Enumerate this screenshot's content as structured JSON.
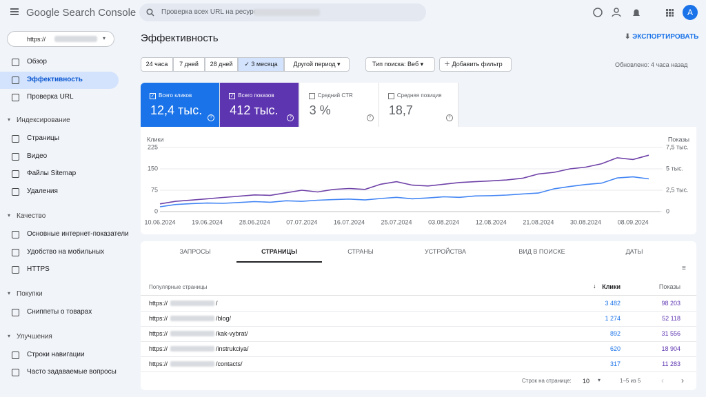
{
  "header": {
    "logo": "Google Search Console",
    "search_placeholder": "Проверка всех URL на ресурсе",
    "avatar": "A"
  },
  "sidebar": {
    "property": "https://",
    "top": [
      "Обзор",
      "Эффективность",
      "Проверка URL"
    ],
    "selected": 1,
    "sections": [
      {
        "title": "Индексирование",
        "items": [
          "Страницы",
          "Видео",
          "Файлы Sitemap",
          "Удаления"
        ]
      },
      {
        "title": "Качество",
        "items": [
          "Основные интернет-показатели",
          "Удобство на мобильных",
          "HTTPS"
        ]
      },
      {
        "title": "Покупки",
        "items": [
          "Сниппеты о товарах"
        ]
      },
      {
        "title": "Улучшения",
        "items": [
          "Строки навигации",
          "Часто задаваемые вопросы"
        ]
      }
    ]
  },
  "main": {
    "title": "Эффективность",
    "export": "ЭКСПОРТИРОВАТЬ",
    "periods": [
      "24 часа",
      "7 дней",
      "28 дней",
      "3 месяца",
      "Другой период"
    ],
    "selected_period": 3,
    "search_type": "Тип поиска: Веб",
    "add_filter": "Добавить фильтр",
    "updated": "Обновлено: 4 часа назад"
  },
  "metrics": [
    {
      "label": "Всего кликов",
      "value": "12,4 тыс.",
      "checked": true,
      "color": "#1a73e8"
    },
    {
      "label": "Всего показов",
      "value": "412 тыс.",
      "checked": true,
      "color": "#5e35b1"
    },
    {
      "label": "Средний CTR",
      "value": "3 %",
      "checked": false
    },
    {
      "label": "Средняя позиция",
      "value": "18,7",
      "checked": false
    }
  ],
  "chart": {
    "type": "line",
    "y_label": "Клики",
    "y2_label": "Показы",
    "x": [
      "10.06.2024",
      "13.06.2024",
      "16.06.2024",
      "19.06.2024",
      "22.06.2024",
      "25.06.2024",
      "28.06.2024",
      "01.07.2024",
      "04.07.2024",
      "07.07.2024",
      "10.07.2024",
      "13.07.2024",
      "16.07.2024",
      "19.07.2024",
      "22.07.2024",
      "25.07.2024",
      "28.07.2024",
      "31.07.2024",
      "03.08.2024",
      "06.08.2024",
      "09.08.2024",
      "12.08.2024",
      "15.08.2024",
      "18.08.2024",
      "21.08.2024",
      "24.08.2024",
      "27.08.2024",
      "30.08.2024",
      "02.09.2024",
      "05.09.2024",
      "08.09.2024",
      "11.09.2024"
    ],
    "xticks": [
      "10.06.2024",
      "19.06.2024",
      "28.06.2024",
      "07.07.2024",
      "16.07.2024",
      "25.07.2024",
      "03.08.2024",
      "12.08.2024",
      "21.08.2024",
      "30.08.2024",
      "08.09.2024"
    ],
    "ylim": [
      0,
      225
    ],
    "yticks": [
      0,
      75,
      150,
      225
    ],
    "y2lim": [
      0,
      7500
    ],
    "y2ticks": [
      0,
      {
        "value": 2500,
        "label": "2,5 тыс."
      },
      {
        "value": 5000,
        "label": "5 тыс."
      },
      {
        "value": 7500,
        "label": "7,5 тыс."
      }
    ],
    "grid": true,
    "series": [
      {
        "color": "#4285f4",
        "values": [
          17,
          25,
          28,
          30,
          29,
          32,
          35,
          33,
          38,
          36,
          40,
          42,
          44,
          41,
          46,
          50,
          45,
          48,
          52,
          50,
          55,
          56,
          58,
          62,
          65,
          80,
          88,
          95,
          100,
          118,
          122,
          115
        ]
      },
      {
        "color": "#6f42a8",
        "axis": "y2",
        "values": [
          900,
          1200,
          1350,
          1500,
          1650,
          1800,
          1950,
          1900,
          2200,
          2500,
          2300,
          2600,
          2700,
          2600,
          3200,
          3500,
          3100,
          3000,
          3200,
          3400,
          3500,
          3600,
          3700,
          3900,
          4400,
          4600,
          5000,
          5200,
          5600,
          6300,
          6100,
          6600
        ]
      }
    ]
  },
  "table": {
    "tabs": [
      "ЗАПРОСЫ",
      "СТРАНИЦЫ",
      "СТРАНЫ",
      "УСТРОЙСТВА",
      "ВИД В ПОИСКЕ",
      "ДАТЫ"
    ],
    "selected_tab": 1,
    "columns": [
      "Популярные страницы",
      "Клики",
      "Показы"
    ],
    "rows": [
      [
        "https://",
        "/",
        "3 482",
        "98 203"
      ],
      [
        "https://",
        "/blog/",
        "1 274",
        "52 118"
      ],
      [
        "https://",
        "/kak-vybrat/",
        "892",
        "31 556"
      ],
      [
        "https://",
        "/instrukciya/",
        "620",
        "18 904"
      ],
      [
        "https://",
        "/contacts/",
        "317",
        "11 283"
      ]
    ],
    "rows_per_page_label": "Строк на странице:",
    "rows_per_page": "10",
    "range": "1–5 из 5"
  }
}
